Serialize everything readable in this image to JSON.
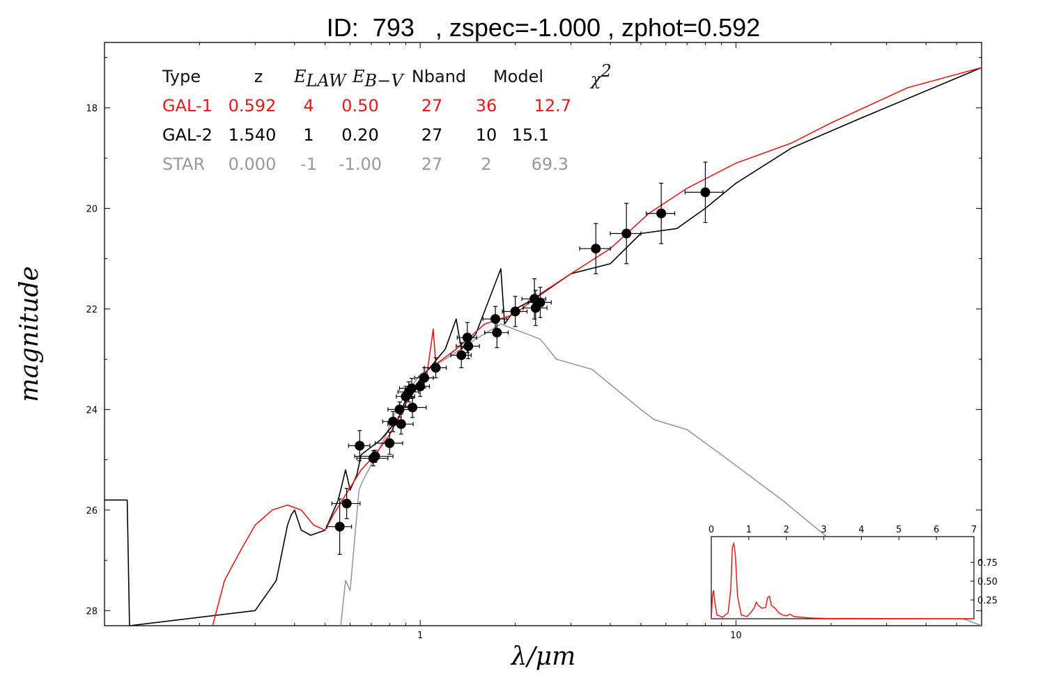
{
  "chart_data": [
    {
      "type": "line",
      "title": "ID:  793   , zspec=-1.000 , zphot=0.592",
      "xlabel": "λ/μm",
      "ylabel": "magnitude",
      "x_scale": "log",
      "xlim": [
        0.1,
        60
      ],
      "ylim": [
        28.3,
        16.7
      ],
      "y_inverted": true,
      "x_ticks": [
        {
          "value": 1,
          "label": "1"
        },
        {
          "value": 10,
          "label": "10"
        }
      ],
      "y_ticks": [
        {
          "value": 18,
          "label": "18"
        },
        {
          "value": 20,
          "label": "20"
        },
        {
          "value": 22,
          "label": "22"
        },
        {
          "value": 24,
          "label": "24"
        },
        {
          "value": 26,
          "label": "26"
        },
        {
          "value": 28,
          "label": "28"
        }
      ],
      "legend_table": {
        "header": [
          "Type",
          "z",
          "E_LAW",
          "E_B−V",
          "Nband",
          "Model",
          "χ²"
        ],
        "header_display": {
          "type": "Type",
          "z": "z",
          "elaw_main": "E",
          "elaw_sub": "LAW",
          "ebv_main": "E",
          "ebv_sub": "B−V",
          "nband": "Nband",
          "model": "Model",
          "chi_main": "χ",
          "chi_sup": "2"
        },
        "rows": [
          {
            "type": "GAL-1",
            "z": "0.592",
            "elaw": "4",
            "ebv": "0.50",
            "nband": "27",
            "model": "36",
            "chi2": "12.7",
            "color": "#e31a1c"
          },
          {
            "type": "GAL-2",
            "z": "1.540",
            "elaw": "1",
            "ebv": "0.20",
            "nband": "27",
            "model": "10",
            "chi2": "15.1",
            "color": "#000000"
          },
          {
            "type": "STAR",
            "z": "0.000",
            "elaw": "-1",
            "ebv": "-1.00",
            "nband": "27",
            "model": "2",
            "chi2": "69.3",
            "color": "#999999"
          }
        ]
      },
      "series": [
        {
          "name": "GAL-1",
          "color": "#e31a1c",
          "points": [
            [
              0.22,
              28.3
            ],
            [
              0.24,
              27.4
            ],
            [
              0.27,
              26.8
            ],
            [
              0.3,
              26.3
            ],
            [
              0.34,
              26.0
            ],
            [
              0.38,
              25.9
            ],
            [
              0.42,
              26.0
            ],
            [
              0.46,
              26.3
            ],
            [
              0.5,
              26.4
            ],
            [
              0.53,
              26.1
            ],
            [
              0.58,
              25.7
            ],
            [
              0.65,
              25.2
            ],
            [
              0.72,
              24.9
            ],
            [
              0.8,
              24.5
            ],
            [
              0.88,
              24.0
            ],
            [
              0.95,
              23.6
            ],
            [
              1.05,
              23.3
            ],
            [
              1.1,
              22.4
            ],
            [
              1.12,
              23.1
            ],
            [
              1.3,
              22.8
            ],
            [
              1.6,
              22.3
            ],
            [
              2.0,
              22.1
            ],
            [
              2.4,
              21.7
            ],
            [
              3.0,
              21.3
            ],
            [
              4.0,
              20.8
            ],
            [
              5.3,
              20.1
            ],
            [
              7,
              19.6
            ],
            [
              10,
              19.1
            ],
            [
              15,
              18.7
            ],
            [
              20,
              18.3
            ],
            [
              35,
              17.6
            ],
            [
              60,
              17.2
            ]
          ]
        },
        {
          "name": "GAL-2",
          "color": "#000000",
          "points": [
            [
              0.1,
              25.8
            ],
            [
              0.118,
              25.8
            ],
            [
              0.12,
              28.3
            ],
            [
              0.3,
              28.0
            ],
            [
              0.35,
              27.4
            ],
            [
              0.38,
              26.3
            ],
            [
              0.39,
              26.1
            ],
            [
              0.4,
              26.0
            ],
            [
              0.42,
              26.4
            ],
            [
              0.45,
              26.5
            ],
            [
              0.5,
              26.4
            ],
            [
              0.55,
              25.8
            ],
            [
              0.58,
              25.2
            ],
            [
              0.6,
              25.6
            ],
            [
              0.63,
              25.3
            ],
            [
              0.65,
              24.9
            ],
            [
              0.75,
              24.6
            ],
            [
              0.85,
              24.2
            ],
            [
              0.9,
              23.8
            ],
            [
              1.0,
              23.4
            ],
            [
              1.2,
              22.8
            ],
            [
              1.3,
              22.2
            ],
            [
              1.35,
              22.8
            ],
            [
              1.5,
              22.5
            ],
            [
              1.8,
              21.2
            ],
            [
              1.85,
              22.3
            ],
            [
              2.0,
              22.0
            ],
            [
              2.3,
              21.8
            ],
            [
              3.0,
              21.3
            ],
            [
              4.0,
              21.1
            ],
            [
              5.0,
              20.5
            ],
            [
              6.5,
              20.4
            ],
            [
              8,
              20.0
            ],
            [
              10,
              19.5
            ],
            [
              15,
              18.8
            ],
            [
              25,
              18.2
            ],
            [
              60,
              17.2
            ]
          ]
        },
        {
          "name": "STAR",
          "color": "#999999",
          "points": [
            [
              0.56,
              28.3
            ],
            [
              0.58,
              27.4
            ],
            [
              0.6,
              27.6
            ],
            [
              0.64,
              25.6
            ],
            [
              0.66,
              25.4
            ],
            [
              0.7,
              25.1
            ],
            [
              0.74,
              24.8
            ],
            [
              0.78,
              24.5
            ],
            [
              0.84,
              24.0
            ],
            [
              0.9,
              23.7
            ],
            [
              1.0,
              23.3
            ],
            [
              1.2,
              23.0
            ],
            [
              1.5,
              22.6
            ],
            [
              1.8,
              22.3
            ],
            [
              2.4,
              22.6
            ],
            [
              2.7,
              23.0
            ],
            [
              3.5,
              23.2
            ],
            [
              5,
              24.0
            ],
            [
              5.5,
              24.2
            ],
            [
              7,
              24.4
            ],
            [
              9,
              24.9
            ],
            [
              14,
              25.8
            ],
            [
              20,
              26.6
            ],
            [
              30,
              27.4
            ],
            [
              45,
              28.0
            ],
            [
              60,
              28.3
            ]
          ]
        }
      ],
      "data_points": [
        {
          "x": 0.556,
          "y": 26.33,
          "yerr": 0.55,
          "xerr": 0.05
        },
        {
          "x": 0.585,
          "y": 25.87,
          "yerr": 0.3,
          "xerr": 0.06
        },
        {
          "x": 0.643,
          "y": 24.72,
          "yerr": 0.3,
          "xerr": 0.05
        },
        {
          "x": 0.71,
          "y": 24.97,
          "yerr": 0.15,
          "xerr": 0.08
        },
        {
          "x": 0.72,
          "y": 24.93,
          "yerr": 0.12,
          "xerr": 0.1
        },
        {
          "x": 0.8,
          "y": 24.67,
          "yerr": 0.22,
          "xerr": 0.08
        },
        {
          "x": 0.82,
          "y": 24.24,
          "yerr": 0.2,
          "xerr": 0.06
        },
        {
          "x": 0.86,
          "y": 24.0,
          "yerr": 0.15,
          "xerr": 0.07
        },
        {
          "x": 0.87,
          "y": 24.29,
          "yerr": 0.2,
          "xerr": 0.08
        },
        {
          "x": 0.9,
          "y": 23.74,
          "yerr": 0.2,
          "xerr": 0.06
        },
        {
          "x": 0.92,
          "y": 23.65,
          "yerr": 0.2,
          "xerr": 0.07
        },
        {
          "x": 0.94,
          "y": 23.58,
          "yerr": 0.2,
          "xerr": 0.08
        },
        {
          "x": 0.945,
          "y": 23.96,
          "yerr": 0.2,
          "xerr": 0.1
        },
        {
          "x": 1.0,
          "y": 23.54,
          "yerr": 0.2,
          "xerr": 0.07
        },
        {
          "x": 1.03,
          "y": 23.37,
          "yerr": 0.2,
          "xerr": 0.07
        },
        {
          "x": 1.12,
          "y": 23.17,
          "yerr": 0.2,
          "xerr": 0.09
        },
        {
          "x": 1.35,
          "y": 22.92,
          "yerr": 0.25,
          "xerr": 0.1
        },
        {
          "x": 1.41,
          "y": 22.57,
          "yerr": 0.3,
          "xerr": 0.1
        },
        {
          "x": 1.42,
          "y": 22.74,
          "yerr": 0.25,
          "xerr": 0.12
        },
        {
          "x": 1.73,
          "y": 22.2,
          "yerr": 0.25,
          "xerr": 0.15
        },
        {
          "x": 1.75,
          "y": 22.47,
          "yerr": 0.3,
          "xerr": 0.15
        },
        {
          "x": 2.0,
          "y": 22.05,
          "yerr": 0.3,
          "xerr": 0.18
        },
        {
          "x": 2.3,
          "y": 21.8,
          "yerr": 0.4,
          "xerr": 0.2
        },
        {
          "x": 2.32,
          "y": 21.98,
          "yerr": 0.35,
          "xerr": 0.2
        },
        {
          "x": 2.4,
          "y": 21.87,
          "yerr": 0.3,
          "xerr": 0.2
        },
        {
          "x": 3.6,
          "y": 20.8,
          "yerr": 0.5,
          "xerr": 0.4
        },
        {
          "x": 4.5,
          "y": 20.5,
          "yerr": 0.6,
          "xerr": 0.5
        },
        {
          "x": 5.8,
          "y": 20.1,
          "yerr": 0.6,
          "xerr": 0.6
        },
        {
          "x": 8.0,
          "y": 19.68,
          "yerr": 0.6,
          "xerr": 1.1
        }
      ]
    },
    {
      "type": "line",
      "title": "",
      "xlim": [
        0,
        7
      ],
      "ylim": [
        0,
        1.0
      ],
      "x_ticks": [
        "0",
        "1",
        "2",
        "3",
        "4",
        "5",
        "6",
        "7"
      ],
      "y_ticks": [
        {
          "value": 0.25,
          "label": "0.25"
        },
        {
          "value": 0.5,
          "label": "0.50"
        },
        {
          "value": 0.75,
          "label": "0.75"
        }
      ],
      "series": [
        {
          "name": "",
          "color": "#e31a1c",
          "points": [
            [
              0,
              0.0
            ],
            [
              0.03,
              0.3
            ],
            [
              0.06,
              0.38
            ],
            [
              0.1,
              0.2
            ],
            [
              0.15,
              0.05
            ],
            [
              0.3,
              0.02
            ],
            [
              0.45,
              0.08
            ],
            [
              0.52,
              0.4
            ],
            [
              0.56,
              0.95
            ],
            [
              0.6,
              1.0
            ],
            [
              0.64,
              0.85
            ],
            [
              0.7,
              0.3
            ],
            [
              0.8,
              0.05
            ],
            [
              0.95,
              0.03
            ],
            [
              1.05,
              0.08
            ],
            [
              1.15,
              0.15
            ],
            [
              1.2,
              0.22
            ],
            [
              1.25,
              0.18
            ],
            [
              1.35,
              0.14
            ],
            [
              1.45,
              0.15
            ],
            [
              1.5,
              0.28
            ],
            [
              1.55,
              0.3
            ],
            [
              1.6,
              0.18
            ],
            [
              1.7,
              0.14
            ],
            [
              1.8,
              0.08
            ],
            [
              1.9,
              0.05
            ],
            [
              2.0,
              0.04
            ],
            [
              2.1,
              0.06
            ],
            [
              2.2,
              0.03
            ],
            [
              2.4,
              0.02
            ],
            [
              2.6,
              0.01
            ],
            [
              3.0,
              0.005
            ],
            [
              7,
              0.0
            ]
          ]
        }
      ]
    }
  ]
}
